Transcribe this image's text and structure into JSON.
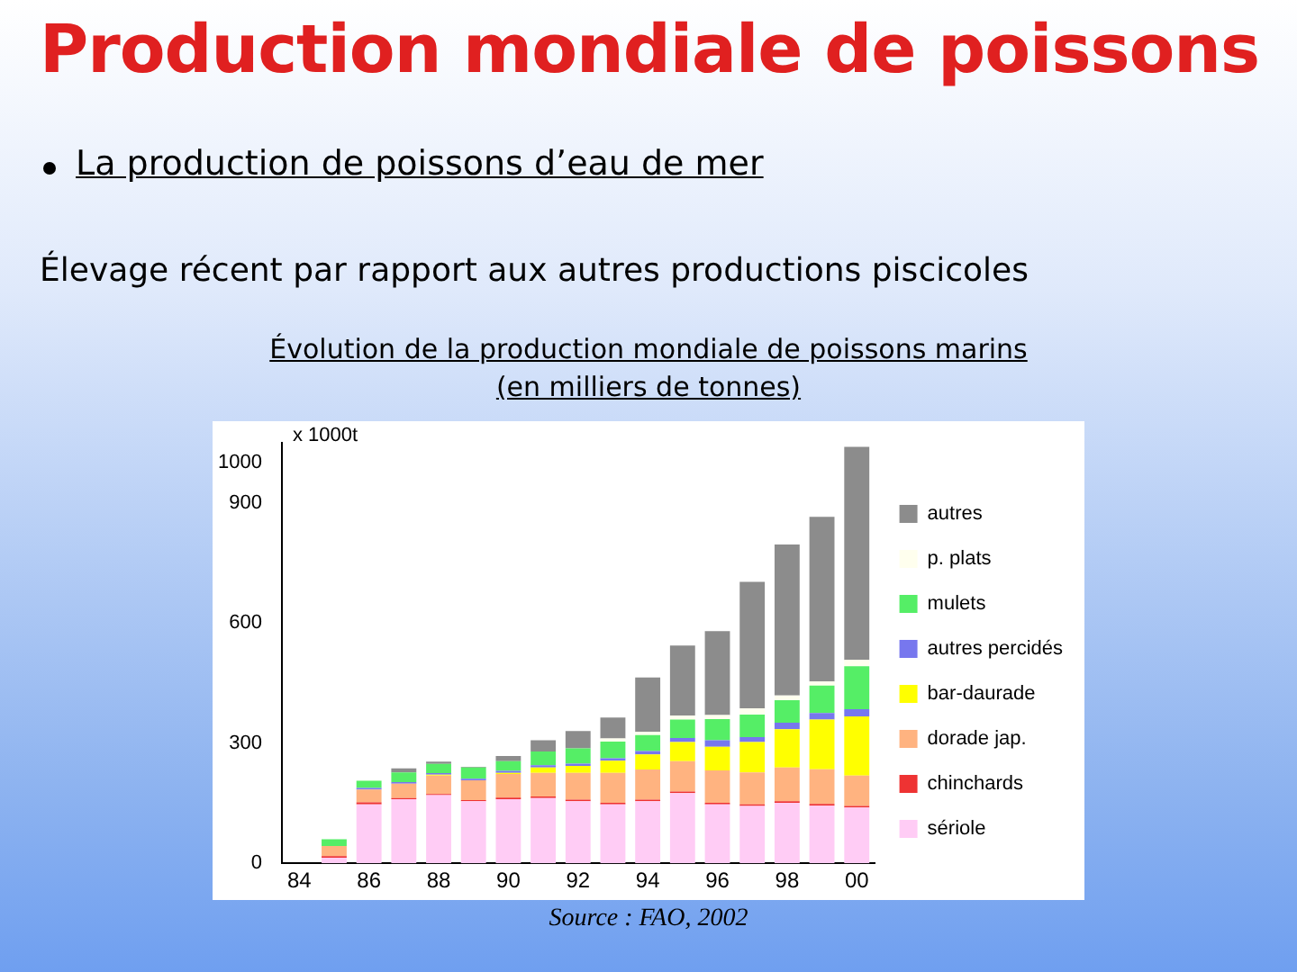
{
  "chart_data": {
    "type": "bar",
    "stacked": true,
    "title": "Production mondiale de poissons",
    "subtitle": "La production de poissons d’eau de mer",
    "annotations": [
      "Élevage récent par rapport aux autres productions piscicoles",
      "Évolution de la production mondiale de poissons marins",
      "(en milliers de tonnes)",
      "Source : FAO, 2002"
    ],
    "ylabel": "x 1000t",
    "categories": [
      "84",
      null,
      "86",
      null,
      "88",
      null,
      "90",
      null,
      "92",
      null,
      "94",
      null,
      "96",
      null,
      "98",
      null,
      "00"
    ],
    "series": [
      {
        "name": "sériole",
        "color": "#ffccf5",
        "values": [
          null,
          14,
          147,
          160,
          170,
          155,
          160,
          163,
          155,
          147,
          155,
          175,
          147,
          143,
          151,
          144,
          139
        ]
      },
      {
        "name": "chinchards",
        "color": "#ee3333",
        "values": [
          null,
          4,
          5,
          3,
          3,
          3,
          4,
          4,
          4,
          4,
          4,
          4,
          4,
          4,
          4,
          4,
          4
        ]
      },
      {
        "name": "dorade jap.",
        "color": "#ffb380",
        "values": [
          null,
          25,
          32,
          36,
          46,
          49,
          59,
          59,
          67,
          75,
          75,
          76,
          81,
          80,
          84,
          87,
          76
        ]
      },
      {
        "name": "bar-daurade",
        "color": "#ffff00",
        "values": [
          null,
          0,
          0,
          0,
          2,
          0,
          3,
          13,
          17,
          30,
          38,
          48,
          59,
          76,
          96,
          124,
          148
        ]
      },
      {
        "name": "autres percidés",
        "color": "#7777ee",
        "values": [
          null,
          0,
          4,
          4,
          4,
          4,
          5,
          6,
          6,
          6,
          8,
          10,
          16,
          12,
          16,
          16,
          18
        ]
      },
      {
        "name": "mulets",
        "color": "#55ee66",
        "values": [
          null,
          17,
          18,
          24,
          23,
          28,
          24,
          34,
          38,
          42,
          40,
          46,
          53,
          56,
          56,
          69,
          107
        ]
      },
      {
        "name": "p. plats",
        "color": "#ffffee",
        "values": [
          null,
          0,
          2,
          null,
          null,
          0,
          null,
          null,
          null,
          8,
          8,
          10,
          10,
          16,
          12,
          10,
          16
        ]
      },
      {
        "name": "autres",
        "color": "#8c8c8c",
        "values": [
          null,
          0,
          0,
          10,
          6,
          2,
          13,
          28,
          43,
          52,
          136,
          175,
          210,
          316,
          377,
          411,
          532
        ]
      }
    ],
    "ylim": [
      0,
      1050
    ],
    "yticks": [
      0,
      300,
      600,
      900,
      1000
    ],
    "grid": false,
    "legend": "right"
  }
}
